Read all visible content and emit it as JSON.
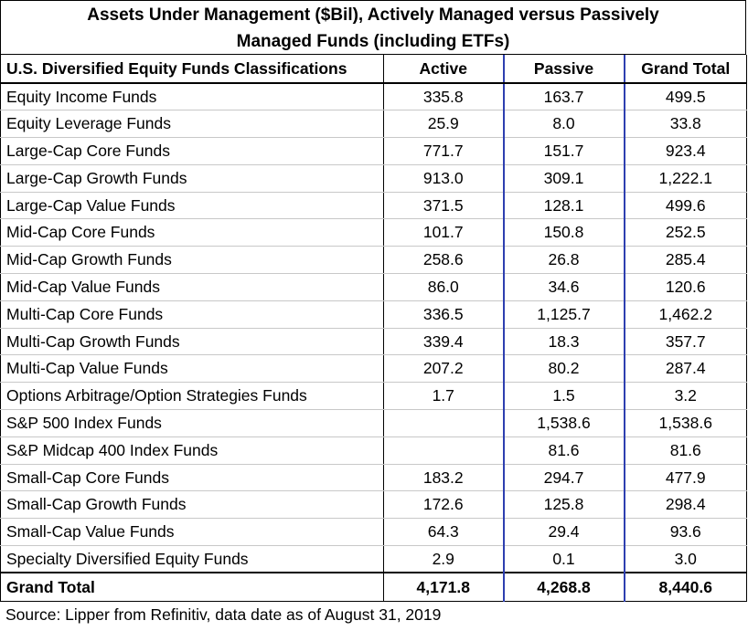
{
  "title_line1": "Assets Under Management ($Bil), Actively Managed versus Passively",
  "title_line2": "Managed Funds (including ETFs)",
  "headers": {
    "classification": "U.S. Diversified Equity Funds Classifications",
    "active": "Active",
    "passive": "Passive",
    "grand_total": "Grand Total"
  },
  "rows": [
    {
      "name": "Equity Income Funds",
      "active": "335.8",
      "passive": "163.7",
      "total": "499.5"
    },
    {
      "name": "Equity Leverage Funds",
      "active": "25.9",
      "passive": "8.0",
      "total": "33.8"
    },
    {
      "name": "Large-Cap Core Funds",
      "active": "771.7",
      "passive": "151.7",
      "total": "923.4"
    },
    {
      "name": "Large-Cap Growth Funds",
      "active": "913.0",
      "passive": "309.1",
      "total": "1,222.1"
    },
    {
      "name": "Large-Cap Value Funds",
      "active": "371.5",
      "passive": "128.1",
      "total": "499.6"
    },
    {
      "name": "Mid-Cap Core Funds",
      "active": "101.7",
      "passive": "150.8",
      "total": "252.5"
    },
    {
      "name": "Mid-Cap Growth Funds",
      "active": "258.6",
      "passive": "26.8",
      "total": "285.4"
    },
    {
      "name": "Mid-Cap Value Funds",
      "active": "86.0",
      "passive": "34.6",
      "total": "120.6"
    },
    {
      "name": "Multi-Cap Core Funds",
      "active": "336.5",
      "passive": "1,125.7",
      "total": "1,462.2"
    },
    {
      "name": "Multi-Cap Growth Funds",
      "active": "339.4",
      "passive": "18.3",
      "total": "357.7"
    },
    {
      "name": "Multi-Cap Value Funds",
      "active": "207.2",
      "passive": "80.2",
      "total": "287.4"
    },
    {
      "name": "Options Arbitrage/Option Strategies Funds",
      "active": "1.7",
      "passive": "1.5",
      "total": "3.2"
    },
    {
      "name": "S&P 500 Index Funds",
      "active": "",
      "passive": "1,538.6",
      "total": "1,538.6"
    },
    {
      "name": "S&P Midcap 400 Index Funds",
      "active": "",
      "passive": "81.6",
      "total": "81.6"
    },
    {
      "name": "Small-Cap Core Funds",
      "active": "183.2",
      "passive": "294.7",
      "total": "477.9"
    },
    {
      "name": "Small-Cap Growth Funds",
      "active": "172.6",
      "passive": "125.8",
      "total": "298.4"
    },
    {
      "name": "Small-Cap Value Funds",
      "active": "64.3",
      "passive": "29.4",
      "total": "93.6"
    },
    {
      "name": "Specialty Diversified Equity Funds",
      "active": "2.9",
      "passive": "0.1",
      "total": "3.0"
    }
  ],
  "grand_total": {
    "name": "Grand Total",
    "active": "4,171.8",
    "passive": "4,268.8",
    "total": "8,440.6"
  },
  "source": "Source: Lipper from Refinitiv, data date as of August 31, 2019",
  "colors": {
    "column_divider": "#2e3fb0",
    "border": "#000000",
    "row_rule": "#c8c8c8"
  }
}
